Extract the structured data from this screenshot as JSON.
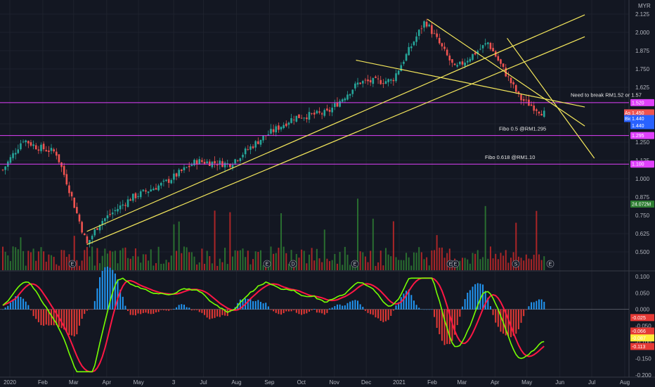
{
  "currency": "MYR",
  "colors": {
    "background": "#131722",
    "up": "#26a69a",
    "down": "#ef5350",
    "trendline": "#f5e85c",
    "level": "#e040fb",
    "volume_up": "#2e7d32",
    "volume_down": "#c62828",
    "macd_line": "#76ff03",
    "signal_line": "#ff1744",
    "hist_pos": "#2196f3",
    "hist_neg": "#e53935"
  },
  "chart_data": [
    {
      "type": "candlestick",
      "title": "",
      "x_tick_labels": [
        "2020",
        "Feb",
        "Mar",
        "Apr",
        "May",
        "3",
        "Jul",
        "Aug",
        "Sep",
        "Oct",
        "Nov",
        "Dec",
        "2021",
        "Feb",
        "Mar",
        "Apr",
        "May",
        "Jun",
        "Jul",
        "Aug"
      ],
      "y_tick_labels": [
        "2.125",
        "2.000",
        "1.875",
        "1.750",
        "1.625",
        "1.375",
        "1.250",
        "1.125",
        "1.000",
        "0.875",
        "0.750",
        "0.625",
        "0.500"
      ],
      "ylim": [
        0.375,
        2.175
      ],
      "price_path": [
        {
          "month": "2020-01",
          "price": 1.06
        },
        {
          "month": "2020-01-20",
          "price": 1.27
        },
        {
          "month": "2020-02",
          "price": 1.22
        },
        {
          "month": "2020-02-20",
          "price": 1.18
        },
        {
          "month": "2020-03",
          "price": 0.98
        },
        {
          "month": "2020-03-20",
          "price": 0.55
        },
        {
          "month": "2020-04",
          "price": 0.7
        },
        {
          "month": "2020-05",
          "price": 0.87
        },
        {
          "month": "2020-06",
          "price": 0.97
        },
        {
          "month": "2020-07",
          "price": 1.12
        },
        {
          "month": "2020-08",
          "price": 1.1
        },
        {
          "month": "2020-09",
          "price": 1.28
        },
        {
          "month": "2020-10",
          "price": 1.42
        },
        {
          "month": "2020-11",
          "price": 1.45
        },
        {
          "month": "2020-12",
          "price": 1.66
        },
        {
          "month": "2021-01",
          "price": 1.67
        },
        {
          "month": "2021-02",
          "price": 2.08
        },
        {
          "month": "2021-03",
          "price": 1.75
        },
        {
          "month": "2021-04",
          "price": 1.93
        },
        {
          "month": "2021-05",
          "price": 1.55
        },
        {
          "month": "2021-05-25",
          "price": 1.44
        }
      ],
      "levels": [
        {
          "value": 1.52,
          "label": "1.520"
        },
        {
          "value": 1.295,
          "label": "1.295"
        },
        {
          "value": 1.1,
          "label": "1.100"
        }
      ],
      "price_tags": {
        "ask_label": "Ask",
        "ask_value": "1.450",
        "bid_label": "Bid",
        "bid_value": "1.440",
        "last_value": "1.440"
      },
      "annotations": [
        "Need to break RM1.52 or 1.57",
        "Fibo 0.5 @RM1.295",
        "Fibo 0.618 @RM1.10"
      ],
      "volume_tag": "24.072M",
      "event_markers": [
        "E",
        "E",
        "D",
        "E",
        "E",
        "E",
        "S",
        "E"
      ]
    },
    {
      "type": "macd",
      "y_tick_labels": [
        "0.100",
        "0.050",
        "0.000",
        "-0.050",
        "-0.100",
        "-0.150",
        "-0.200"
      ],
      "ylim": [
        -0.2,
        0.105
      ],
      "value_tags": [
        {
          "value": "-0.025",
          "color": "#e53935"
        },
        {
          "value": "-0.066",
          "color": "#e53935"
        },
        {
          "value": "-0.087",
          "color": "#ffeb3b"
        },
        {
          "value": "-0.113",
          "color": "#e53935"
        }
      ]
    }
  ]
}
